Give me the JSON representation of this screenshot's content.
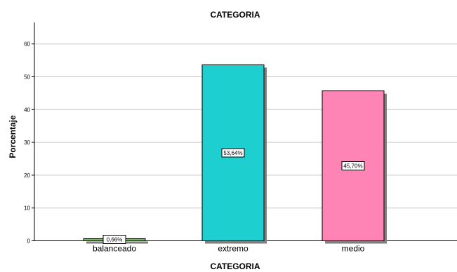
{
  "chart_data": {
    "type": "bar",
    "title": "CATEGORIA",
    "xlabel": "CATEGORIA",
    "ylabel": "Porcentaje",
    "categories": [
      "balanceado",
      "extremo",
      "medio"
    ],
    "values": [
      0.66,
      53.64,
      45.7
    ],
    "data_labels": [
      "0,66%",
      "53,64%",
      "45,70%"
    ],
    "colors": [
      "#6ec646",
      "#1dcfcf",
      "#ff84b6"
    ],
    "ylim": [
      0,
      66
    ],
    "yticks": [
      0,
      10,
      20,
      30,
      40,
      50,
      60
    ],
    "ytick_labels": [
      "0",
      "10",
      "20",
      "30",
      "40",
      "50",
      "60"
    ],
    "grid": true,
    "legend": "none"
  }
}
